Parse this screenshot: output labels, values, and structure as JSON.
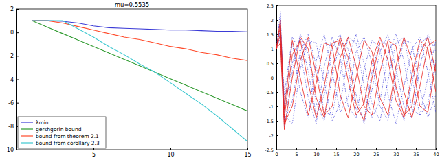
{
  "chart_data": [
    {
      "type": "line",
      "title": "mu=0.5535",
      "x": [
        1,
        2,
        3,
        4,
        5,
        6,
        7,
        8,
        9,
        10,
        11,
        12,
        13,
        14,
        15
      ],
      "series": [
        {
          "name": "λmin",
          "color": "#3b3bd6",
          "values": [
            1,
            1,
            0.95,
            0.8,
            0.55,
            0.4,
            0.35,
            0.3,
            0.25,
            0.2,
            0.2,
            0.15,
            0.1,
            0.1,
            0.05
          ]
        },
        {
          "name": "gershgorin bound",
          "color": "#2e9a2e",
          "values": [
            1,
            0.45,
            -0.1,
            -0.65,
            -1.2,
            -1.75,
            -2.3,
            -2.85,
            -3.4,
            -3.95,
            -4.5,
            -5.05,
            -5.6,
            -6.15,
            -6.7
          ]
        },
        {
          "name": "bound from theorem 2.1",
          "color": "#ff4a2a",
          "values": [
            1,
            1,
            0.8,
            0.5,
            0.2,
            -0.1,
            -0.4,
            -0.6,
            -0.9,
            -1.2,
            -1.4,
            -1.7,
            -1.9,
            -2.2,
            -2.4
          ]
        },
        {
          "name": "bound from corollary 2.3",
          "color": "#3cc8d0",
          "values": [
            1,
            1,
            1,
            0.3,
            -0.4,
            -1.2,
            -1.9,
            -2.7,
            -3.4,
            -4.3,
            -5.2,
            -6.1,
            -7.1,
            -8.2,
            -9.3
          ]
        }
      ],
      "xlim": [
        0,
        15
      ],
      "xticks": [
        5,
        10,
        15
      ],
      "ylim": [
        -10,
        2
      ],
      "yticks": [
        -10,
        -8,
        -6,
        -4,
        -2,
        0,
        2
      ],
      "legend": "lower left",
      "grid": false
    },
    {
      "type": "line",
      "x": [
        0,
        1,
        2,
        4,
        6,
        8,
        10,
        12,
        14,
        16,
        18,
        20,
        22,
        24,
        26,
        28,
        30,
        32,
        34,
        36,
        38,
        40
      ],
      "series": [
        {
          "color": "#3a3ad8",
          "line_style": "dotted",
          "values": [
            1,
            2.1,
            -1.2,
            0.5,
            1.4,
            0.2,
            -1.3,
            -0.6,
            1.0,
            1.5,
            0.3,
            -1.1,
            -1.4,
            0.2,
            1.3,
            1.1,
            -0.4,
            -1.5,
            -0.2,
            1.2,
            1.4,
            0.1
          ]
        },
        {
          "color": "#3a3ad8",
          "line_style": "dotted",
          "values": [
            1,
            1.7,
            -1.5,
            -0.8,
            0.9,
            1.5,
            0.4,
            -1.2,
            -1.3,
            0.1,
            1.4,
            1.2,
            -0.3,
            -1.4,
            -0.8,
            0.8,
            1.5,
            0.6,
            -1.1,
            -1.3,
            0.0,
            1.3
          ]
        },
        {
          "color": "#3a3ad8",
          "line_style": "dotted",
          "values": [
            1,
            1.9,
            -0.9,
            1.2,
            -0.5,
            -1.4,
            0.6,
            1.5,
            0.2,
            -1.2,
            -0.7,
            0.9,
            1.4,
            0.5,
            -1.0,
            -1.5,
            0.1,
            1.3,
            1.2,
            -0.4,
            -1.4,
            -0.6
          ]
        },
        {
          "color": "#3a3ad8",
          "line_style": "dotted",
          "values": [
            1,
            1.4,
            -1.7,
            0.2,
            1.5,
            0.8,
            -0.9,
            -1.5,
            0.0,
            1.3,
            1.0,
            -0.6,
            -1.6,
            -0.4,
            0.9,
            1.5,
            0.3,
            -1.0,
            -1.4,
            0.4,
            1.5,
            0.9
          ]
        },
        {
          "color": "#3a3ad8",
          "line_style": "dotted",
          "values": [
            1,
            2.3,
            -1.3,
            -1.6,
            0.3,
            1.3,
            1.2,
            -0.2,
            -1.5,
            -0.9,
            0.7,
            1.5,
            0.5,
            -0.9,
            -1.5,
            -0.1,
            1.2,
            1.4,
            0.0,
            -1.3,
            -0.9,
            0.6
          ]
        },
        {
          "color": "#3a3ad8",
          "line_style": "dotted",
          "values": [
            1,
            1.6,
            -0.6,
            1.4,
            0.9,
            -0.7,
            -1.6,
            0.4,
            1.4,
            0.7,
            -1.0,
            -1.4,
            0.3,
            1.3,
            1.0,
            -0.6,
            -1.6,
            -0.3,
            1.0,
            1.4,
            0.2,
            -1.2
          ]
        },
        {
          "color": "#e8201a",
          "line_style": "solid",
          "values": [
            1,
            1.8,
            -1.4,
            0.8,
            1.3,
            -0.2,
            -1.4,
            -0.3,
            1.2,
            1.3,
            -0.1,
            -1.3,
            -0.9,
            0.6,
            1.4,
            0.6,
            -0.8,
            -1.4,
            0.1,
            1.3,
            1.0,
            -0.5
          ]
        },
        {
          "color": "#e8201a",
          "line_style": "solid",
          "values": [
            1,
            1.5,
            -1.6,
            -1.0,
            0.6,
            1.4,
            0.1,
            -1.3,
            -1.0,
            0.7,
            1.4,
            0.4,
            -1.0,
            -1.3,
            0.2,
            1.3,
            1.1,
            -0.5,
            -1.4,
            -0.3,
            1.1,
            1.3
          ]
        },
        {
          "color": "#e8201a",
          "line_style": "solid",
          "values": [
            1,
            2.0,
            -1.1,
            1.3,
            0.0,
            -1.3,
            -0.2,
            1.2,
            1.1,
            -0.6,
            -1.4,
            0.0,
            1.3,
            0.9,
            -0.7,
            -1.3,
            0.4,
            1.4,
            0.6,
            -1.0,
            -1.2,
            0.5
          ]
        },
        {
          "color": "#e8201a",
          "line_style": "solid",
          "values": [
            1,
            1.2,
            -1.8,
            0.0,
            1.4,
            1.0,
            -0.7,
            -1.4,
            0.3,
            1.4,
            0.7,
            -0.9,
            -1.5,
            0.0,
            1.2,
            1.2,
            -0.3,
            -1.3,
            -1.0,
            0.8,
            1.4,
            0.2
          ]
        }
      ],
      "xlim": [
        0,
        40
      ],
      "xticks": [
        0,
        5,
        10,
        15,
        20,
        25,
        30,
        35,
        40
      ],
      "ylim": [
        -2.5,
        2.5
      ],
      "yticks": [
        -2.5,
        -2,
        -1.5,
        -1,
        -0.5,
        0,
        0.5,
        1,
        1.5,
        2,
        2.5
      ],
      "grid": false
    }
  ]
}
